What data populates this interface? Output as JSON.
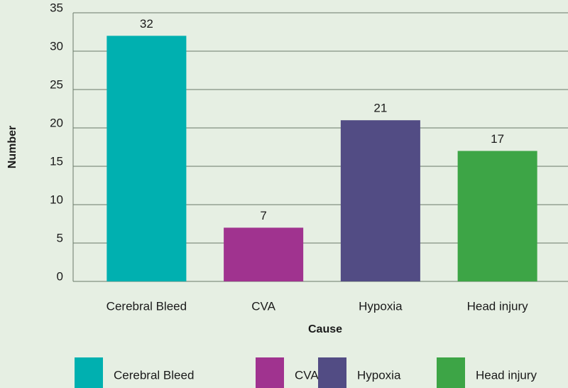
{
  "chart_data": {
    "type": "bar",
    "xlabel": "Cause",
    "ylabel": "Number",
    "categories": [
      "Cerebral Bleed",
      "CVA",
      "Hypoxia",
      "Head injury"
    ],
    "values": [
      32,
      7,
      21,
      17
    ],
    "colors": [
      "#00b0b0",
      "#a0338f",
      "#524c84",
      "#3da546"
    ],
    "ylim": [
      0,
      35
    ],
    "yticks": [
      0,
      5,
      10,
      15,
      20,
      25,
      30,
      35
    ],
    "grid": true,
    "legend": "bottom"
  }
}
